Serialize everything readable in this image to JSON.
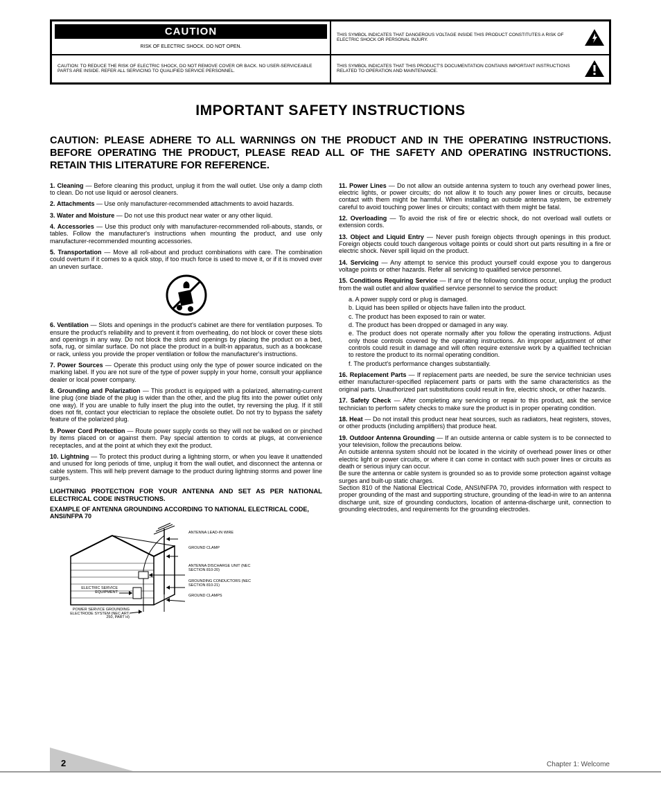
{
  "warning_table": {
    "caution_title": "CAUTION",
    "caution_sub": "RISK OF ELECTRIC SHOCK.\nDO NOT OPEN.",
    "lightning_text": "THIS SYMBOL INDICATES THAT DANGEROUS VOLTAGE INSIDE THIS PRODUCT CONSTITUTES A RISK OF ELECTRIC SHOCK OR PERSONAL INJURY.",
    "caution_lower": "CAUTION: TO REDUCE THE RISK OF ELECTRIC SHOCK, DO NOT REMOVE COVER OR BACK. NO USER-SERVICEABLE PARTS ARE INSIDE. REFER ALL SERVICING TO QUALIFIED SERVICE PERSONNEL.",
    "exclaim_text": "THIS SYMBOL INDICATES THAT THIS PRODUCT'S DOCUMENTATION CONTAINS IMPORTANT INSTRUCTIONS RELATED TO OPERATION AND MAINTENANCE."
  },
  "main_heading": "IMPORTANT SAFETY INSTRUCTIONS",
  "main_caution": "CAUTION: PLEASE ADHERE TO ALL WARNINGS ON THE PRODUCT AND IN THE OPERATING INSTRUCTIONS. BEFORE OPERATING THE PRODUCT, PLEASE READ ALL OF THE SAFETY AND OPERATING INSTRUCTIONS. RETAIN THIS LITERATURE FOR REFERENCE.",
  "left_col": {
    "items": [
      {
        "num": "1.",
        "title": "Cleaning",
        "text": " — Before cleaning this product, unplug it from the wall outlet. Use only a damp cloth to clean. Do not use liquid or aerosol cleaners."
      },
      {
        "num": "2.",
        "title": "Attachments",
        "text": " — Use only manufacturer-recommended attachments to avoid hazards."
      },
      {
        "num": "3.",
        "title": "Water and Moisture",
        "text": " — Do not use this product near water or any other liquid."
      },
      {
        "num": "4.",
        "title": "Accessories",
        "text": " — Use this product only with manufacturer-recommended roll-abouts, stands, or tables. Follow the manufacturer's instructions when mounting the product, and use only manufacturer-recommended mounting accessories."
      },
      {
        "num": "5.",
        "title": "Transportation",
        "text": " — Move all roll-about and product combinations with care. The combination could overturn if it comes to a quick stop, if too much force is used to move it, or if it is moved over an uneven surface."
      },
      {
        "num": "6.",
        "title": "Ventilation",
        "text": " — Slots and openings in the product's cabinet are there for ventilation purposes. To ensure the product's reliability and to prevent it from overheating, do not block or cover these slots and openings in any way. Do not block the slots and openings by placing the product on a bed, sofa, rug, or similar surface. Do not place the product in a built-in apparatus, such as a bookcase or rack, unless you provide the proper ventilation or follow the manufacturer's instructions."
      },
      {
        "num": "7.",
        "title": "Power Sources",
        "text": " — Operate this product using only the type of power source indicated on the marking label. If you are not sure of the type of power supply in your home, consult your appliance dealer or local power company."
      },
      {
        "num": "8.",
        "title": "Grounding and Polarization",
        "text": " — This product is equipped with a polarized, alternating-current line plug (one blade of the plug is wider than the other, and the plug fits into the power outlet only one way). If you are unable to fully insert the plug into the outlet, try reversing the plug. If it still does not fit, contact your electrician to replace the obsolete outlet. Do not try to bypass the safety feature of the polarized plug."
      },
      {
        "num": "9.",
        "title": "Power Cord Protection",
        "text": " — Route power supply cords so they will not be walked on or pinched by items placed on or against them. Pay special attention to cords at plugs, at convenience receptacles, and at the point at which they exit the product."
      },
      {
        "num": "10.",
        "title": "Lightning",
        "text": " — To protect this product during a lightning storm, or when you leave it unattended and unused for long periods of time, unplug it from the wall outlet, and disconnect the antenna or cable system. This will help prevent damage to the product during lightning storms and power line surges."
      }
    ],
    "lightning_heading": "LIGHTNING PROTECTION FOR YOUR ANTENNA AND SET AS PER NATIONAL ELECTRICAL CODE INSTRUCTIONS.",
    "antenna_example": "EXAMPLE OF ANTENNA GROUNDING ACCORDING TO NATIONAL ELECTRICAL CODE, ANSI/NFPA 70",
    "antenna_labels": {
      "lead_in": "ANTENNA LEAD-IN WIRE",
      "discharge": "ANTENNA DISCHARGE UNIT (NEC SECTION 810-20)",
      "conductors": "GROUNDING CONDUCTORS (NEC SECTION 810-21)",
      "clamps": "GROUND CLAMPS",
      "service": "ELECTRIC SERVICE EQUIPMENT",
      "electrode": "POWER SERVICE GROUNDING ELECTRODE SYSTEM (NEC ART. 250, PART H)",
      "clamp2": "GROUND CLAMP"
    }
  },
  "right_col": {
    "items_a": [
      {
        "num": "11.",
        "title": "Power Lines",
        "text": " — Do not allow an outside antenna system to touch any overhead power lines, electric lights, or power circuits; do not allow it to touch any power lines or circuits, because contact with them might be harmful. When installing an outside antenna system, be extremely careful to avoid touching power lines or circuits; contact with them might be fatal."
      },
      {
        "num": "12.",
        "title": "Overloading",
        "text": " — To avoid the risk of fire or electric shock, do not overload wall outlets or extension cords."
      },
      {
        "num": "13.",
        "title": "Object and Liquid Entry",
        "text": " — Never push foreign objects through openings in this product. Foreign objects could touch dangerous voltage points or could short out parts resulting in a fire or electric shock. Never spill liquid on the product."
      },
      {
        "num": "14.",
        "title": "Servicing",
        "text": " — Any attempt to service this product yourself could expose you to dangerous voltage points or other hazards. Refer all servicing to qualified service personnel."
      },
      {
        "num": "15.",
        "title": "Conditions Requiring Service",
        "text": " — If any of the following conditions occur, unplug the product from the wall outlet and allow qualified service personnel to service the product:"
      }
    ],
    "sublist": [
      "a. A power supply cord or plug is damaged.",
      "b. Liquid has been spilled or objects have fallen into the product.",
      "c. The product has been exposed to rain or water.",
      "d. The product has been dropped or damaged in any way.",
      "e. The product does not operate normally after you follow the operating instructions. Adjust only those controls covered by the operating instructions. An improper adjustment of other controls could result in damage and will often require extensive work by a qualified technician to restore the product to its normal operating condition.",
      "f. The product's performance changes substantially."
    ],
    "items_b": [
      {
        "num": "16.",
        "title": "Replacement Parts",
        "text": " — If replacement parts are needed, be sure the service technician uses either manufacturer-specified replacement parts or parts with the same characteristics as the original parts. Unauthorized part substitutions could result in fire, electric shock, or other hazards."
      },
      {
        "num": "17.",
        "title": "Safety Check",
        "text": " — After completing any servicing or repair to this product, ask the service technician to perform safety checks to make sure the product is in proper operating condition."
      },
      {
        "num": "18.",
        "title": "Heat",
        "text": " — Do not install this product near heat sources, such as radiators, heat registers, stoves, or other products (including amplifiers) that produce heat."
      },
      {
        "num": "19.",
        "title": "Outdoor Antenna Grounding",
        "text": " — If an outside antenna or cable system is to be connected to your television, follow the precautions below.\nAn outside antenna system should not be located in the vicinity of overhead power lines or other electric light or power circuits, or where it can come in contact with such power lines or circuits as death or serious injury can occur.\nBe sure the antenna or cable system is grounded so as to provide some protection against voltage surges and built-up static charges.\nSection 810 of the National Electrical Code, ANSI/NFPA 70, provides information with respect to proper grounding of the mast and supporting structure, grounding of the lead-in wire to an antenna discharge unit, size of grounding conductors, location of antenna-discharge unit, connection to grounding electrodes, and requirements for the grounding electrodes."
      }
    ]
  },
  "footer": {
    "page": "2",
    "text": "Chapter 1: Welcome"
  }
}
